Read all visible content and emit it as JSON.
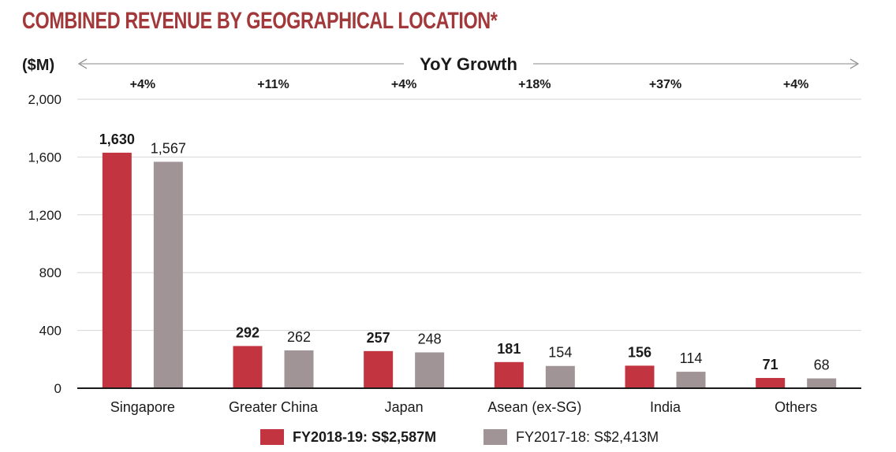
{
  "chart_data": {
    "type": "bar",
    "title": "COMBINED REVENUE BY GEOGRAPHICAL LOCATION*",
    "ylabel": "($M)",
    "growth_header": "YoY Growth",
    "ylim": [
      0,
      2000
    ],
    "yticks": [
      0,
      400,
      800,
      1200,
      1600,
      2000
    ],
    "ytick_labels": [
      "0",
      "400",
      "800",
      "1,200",
      "1,600",
      "2,000"
    ],
    "grid": true,
    "legend_position": "bottom",
    "categories": [
      "Singapore",
      "Greater China",
      "Japan",
      "Asean (ex-SG)",
      "India",
      "Others"
    ],
    "growth": [
      "+4%",
      "+11%",
      "+4%",
      "+18%",
      "+37%",
      "+4%"
    ],
    "series": [
      {
        "name": "FY2018-19: S$2,587M",
        "values": [
          1630,
          292,
          257,
          181,
          156,
          71
        ],
        "value_labels": [
          "1,630",
          "292",
          "257",
          "181",
          "156",
          "71"
        ],
        "color": "#c23440"
      },
      {
        "name": "FY2017-18: S$2,413M",
        "values": [
          1567,
          262,
          248,
          154,
          114,
          68
        ],
        "value_labels": [
          "1,567",
          "262",
          "248",
          "154",
          "114",
          "68"
        ],
        "color": "#a09497"
      }
    ]
  }
}
